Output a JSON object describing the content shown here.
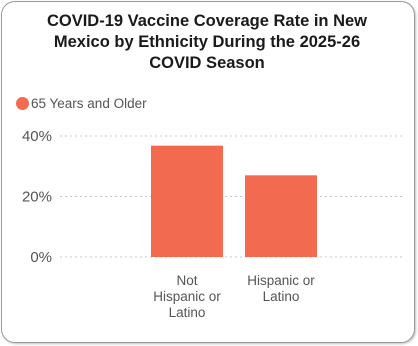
{
  "chart_data": {
    "type": "bar",
    "title": "COVID-19 Vaccine Coverage Rate in New Mexico by Ethnicity During the 2025-26 COVID Season",
    "title_lines": [
      "COVID-19 Vaccine Coverage Rate in New",
      "Mexico by Ethnicity During the 2025-26",
      "COVID Season"
    ],
    "categories": [
      [
        "Not",
        "Hispanic or",
        "Latino"
      ],
      [
        "Hispanic or",
        "Latino"
      ]
    ],
    "series": [
      {
        "name": "65 Years and Older",
        "values": [
          36.8,
          27.0
        ],
        "color": "#f26a4f"
      }
    ],
    "ylim": [
      0,
      40
    ],
    "yticks": [
      {
        "value": 40,
        "label": "40%"
      },
      {
        "value": 20,
        "label": "20%"
      },
      {
        "value": 0,
        "label": "0%"
      }
    ],
    "grid": true,
    "legend_position": "top-left",
    "xlabel": "",
    "ylabel": ""
  },
  "colors": {
    "grid": "#c8c8c8",
    "text": "#555555",
    "title": "#1a1a1a"
  }
}
